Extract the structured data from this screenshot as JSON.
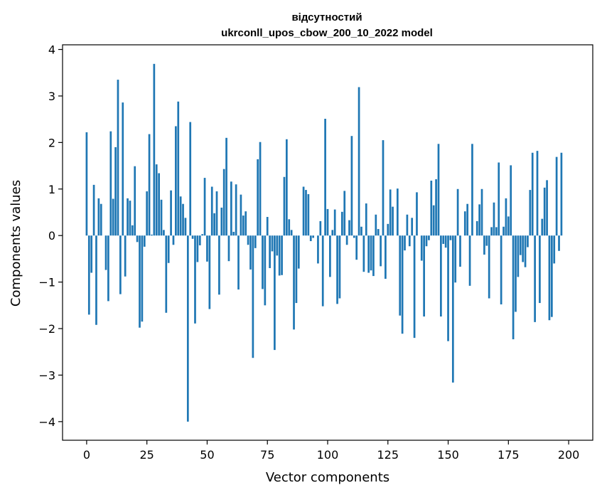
{
  "chart_data": {
    "type": "bar",
    "title": "відсутностий",
    "subtitle": "ukrconll_upos_cbow_200_10_2022 model",
    "xlabel": "Vector components",
    "ylabel": "Components values",
    "xlim": [
      -10,
      210
    ],
    "ylim": [
      -4.4,
      4.1
    ],
    "xticks": [
      0,
      25,
      50,
      75,
      100,
      125,
      150,
      175,
      200
    ],
    "yticks": [
      -4,
      -3,
      -2,
      -1,
      0,
      1,
      2,
      3,
      4
    ],
    "xtick_labels": [
      "0",
      "25",
      "50",
      "75",
      "100",
      "125",
      "150",
      "175",
      "200"
    ],
    "ytick_labels": [
      "−4",
      "−3",
      "−2",
      "−1",
      "0",
      "1",
      "2",
      "3",
      "4"
    ],
    "bar_color": "#1f77b4",
    "grid": false,
    "legend": false,
    "values": [
      2.22,
      -1.7,
      -0.8,
      1.09,
      -1.92,
      0.8,
      0.68,
      0.0,
      -0.74,
      -1.41,
      2.24,
      0.79,
      1.9,
      3.35,
      -1.26,
      2.86,
      -0.88,
      0.8,
      0.75,
      0.22,
      1.49,
      -0.14,
      -1.98,
      -1.85,
      -0.24,
      0.95,
      2.18,
      0.02,
      3.69,
      1.53,
      1.34,
      0.77,
      0.12,
      -1.66,
      -0.59,
      0.97,
      -0.2,
      2.35,
      2.88,
      0.84,
      0.68,
      0.38,
      -4.0,
      2.44,
      -0.07,
      -1.89,
      -0.57,
      -0.21,
      0.03,
      1.24,
      -0.56,
      -1.58,
      1.05,
      0.48,
      0.95,
      -1.27,
      0.6,
      1.43,
      2.1,
      -0.55,
      1.16,
      0.08,
      1.1,
      -1.16,
      0.88,
      0.43,
      0.52,
      -0.2,
      -0.73,
      -2.63,
      -0.27,
      1.64,
      2.01,
      -1.15,
      -1.5,
      0.4,
      -0.7,
      -0.34,
      -2.46,
      -0.43,
      -0.86,
      -0.85,
      1.26,
      2.07,
      0.35,
      0.12,
      -2.02,
      -1.45,
      -0.71,
      0.0,
      1.05,
      0.98,
      0.89,
      -0.12,
      -0.05,
      0.0,
      -0.6,
      0.31,
      -1.52,
      2.51,
      0.57,
      -0.89,
      0.12,
      0.56,
      -1.47,
      -1.35,
      0.51,
      0.96,
      -0.2,
      0.33,
      2.14,
      -0.05,
      -0.52,
      3.19,
      0.19,
      -0.78,
      0.69,
      -0.8,
      -0.75,
      -0.87,
      0.45,
      0.14,
      -0.66,
      2.05,
      -0.93,
      0.25,
      0.99,
      0.62,
      0.0,
      1.01,
      -1.72,
      -2.11,
      -0.32,
      0.45,
      -0.23,
      0.38,
      -2.2,
      0.93,
      0.0,
      -0.54,
      -1.74,
      -0.23,
      -0.1,
      1.18,
      0.65,
      1.21,
      1.97,
      -1.74,
      -0.18,
      -0.26,
      -2.27,
      -0.1,
      -3.16,
      -1.01,
      1.0,
      -0.67,
      0.0,
      0.52,
      0.68,
      -1.08,
      1.97,
      0.0,
      0.31,
      0.67,
      1.0,
      -0.41,
      -0.22,
      -1.35,
      0.18,
      0.71,
      0.18,
      1.57,
      -1.48,
      0.19,
      0.8,
      0.41,
      1.51,
      -2.23,
      -1.64,
      -0.89,
      -0.42,
      -0.57,
      -0.68,
      -0.25,
      0.98,
      1.78,
      -1.86,
      1.82,
      -1.45,
      0.36,
      1.03,
      1.19,
      -1.82,
      -1.75,
      -0.6,
      1.69,
      -0.33,
      1.78,
      0.0,
      0.0
    ]
  }
}
